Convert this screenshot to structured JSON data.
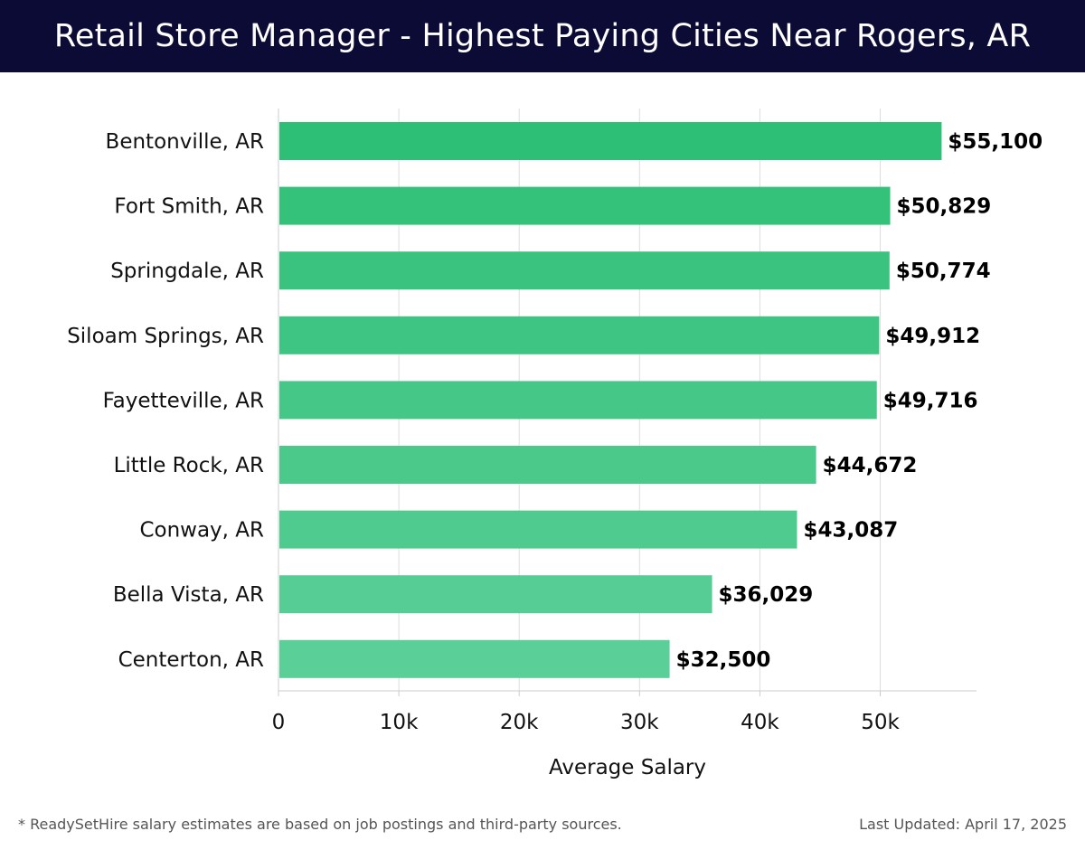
{
  "header": {
    "title": "Retail Store Manager - Highest Paying Cities Near Rogers, AR"
  },
  "chart_data": {
    "type": "bar",
    "orientation": "horizontal",
    "categories": [
      "Bentonville, AR",
      "Fort Smith, AR",
      "Springdale, AR",
      "Siloam Springs, AR",
      "Fayetteville, AR",
      "Little Rock, AR",
      "Conway, AR",
      "Bella Vista, AR",
      "Centerton, AR"
    ],
    "values": [
      55100,
      50829,
      50774,
      49912,
      49716,
      44672,
      43087,
      36029,
      32500
    ],
    "value_labels": [
      "$55,100",
      "$50,829",
      "$50,774",
      "$49,912",
      "$49,716",
      "$44,672",
      "$43,087",
      "$36,029",
      "$32,500"
    ],
    "xlabel": "Average Salary",
    "ylabel": "",
    "xlim": [
      0,
      58000
    ],
    "xticks": [
      0,
      10000,
      20000,
      30000,
      40000,
      50000
    ],
    "xtick_labels": [
      "0",
      "10k",
      "20k",
      "30k",
      "40k",
      "50k"
    ],
    "grid": true,
    "bar_color_top": "#2ebf76",
    "bar_color_bottom": "#5bcf98"
  },
  "footer": {
    "note": "* ReadySetHire salary estimates are based on job postings and third-party sources.",
    "updated": "Last Updated: April 17, 2025"
  }
}
